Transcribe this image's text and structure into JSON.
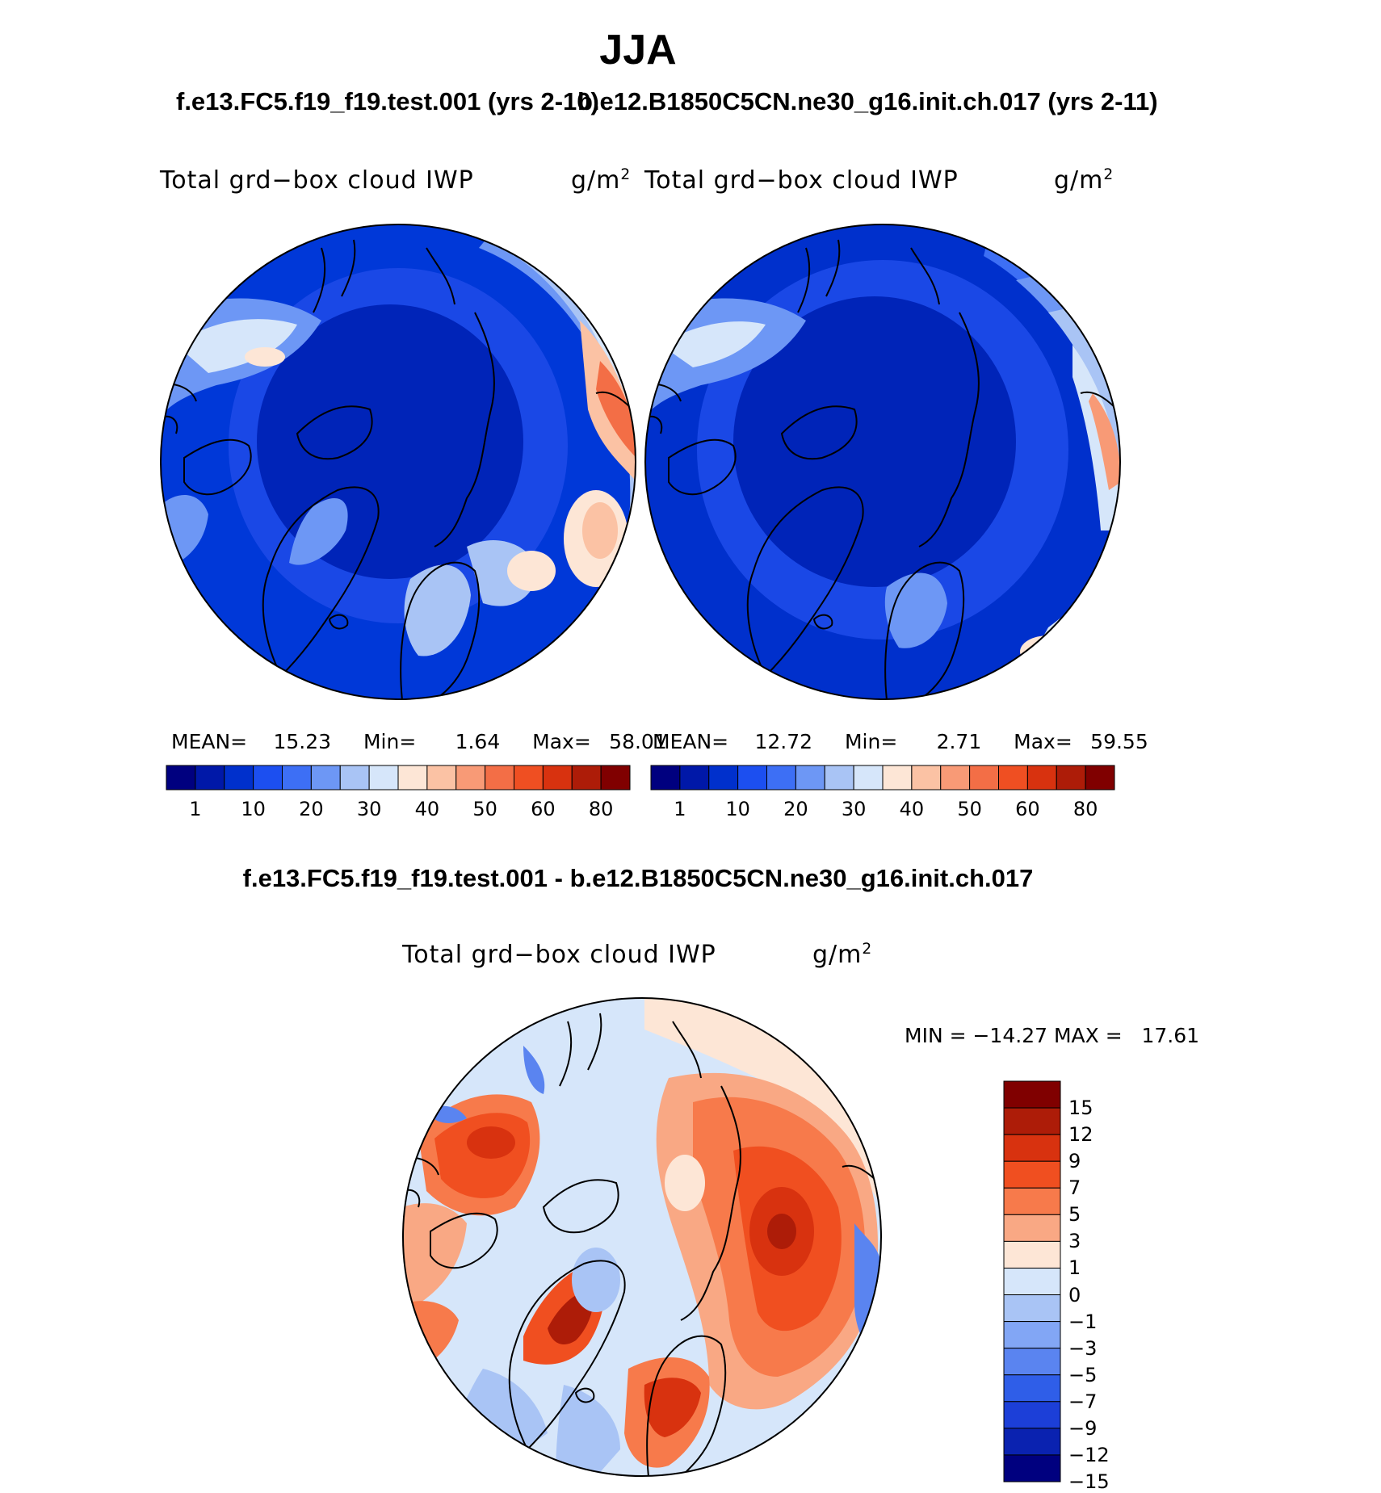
{
  "season_title": "JJA",
  "header": {
    "case_left": "f.e13.FC5.f19_f19.test.001 (yrs 2-10)",
    "case_right": "b.e12.B1850C5CN.ne30_g16.init.ch.017 (yrs 2-11)"
  },
  "panels": [
    {
      "variable": "Total grd−box cloud IWP",
      "units": "g/m",
      "units_exp": "2",
      "stats": {
        "mean_label": "MEAN=",
        "mean": "15.23",
        "min_label": "Min=",
        "min": "1.64",
        "max_label": "Max=",
        "max": "58.01"
      }
    },
    {
      "variable": "Total grd−box cloud IWP",
      "units": "g/m",
      "units_exp": "2",
      "stats": {
        "mean_label": "MEAN=",
        "mean": "12.72",
        "min_label": "Min=",
        "min": "2.71",
        "max_label": "Max=",
        "max": "59.55"
      }
    }
  ],
  "abs_colorbar": {
    "colors": [
      "#00007f",
      "#0018a8",
      "#0030cc",
      "#1c4ff0",
      "#3d6ff5",
      "#6d97f5",
      "#a9c4f5",
      "#d6e6fa",
      "#fde6d6",
      "#fbc2a4",
      "#f89a76",
      "#f36e46",
      "#ef4f22",
      "#d8320f",
      "#ad1c08",
      "#800000"
    ],
    "labels": [
      "1",
      "10",
      "20",
      "30",
      "40",
      "50",
      "60",
      "80"
    ]
  },
  "diff_title": "f.e13.FC5.f19_f19.test.001 - b.e12.B1850C5CN.ne30_g16.init.ch.017",
  "diff_panel": {
    "variable": "Total grd−box cloud IWP",
    "units": "g/m",
    "units_exp": "2",
    "minmax": "MIN = −14.27 MAX =   17.61"
  },
  "diff_colorbar": {
    "colors_top_to_bottom": [
      "#800000",
      "#ad1c08",
      "#d8320f",
      "#f04f20",
      "#f77a4b",
      "#f9a884",
      "#fde6d6",
      "#d6e6fa",
      "#a9c4f5",
      "#82a6f5",
      "#5a84f0",
      "#2f5ee8",
      "#1c3fd8",
      "#0a22b0",
      "#00007f"
    ],
    "labels": [
      "15",
      "12",
      "9",
      "7",
      "5",
      "3",
      "1",
      "0",
      "−1",
      "−3",
      "−5",
      "−7",
      "−9",
      "−12",
      "−15"
    ]
  }
}
